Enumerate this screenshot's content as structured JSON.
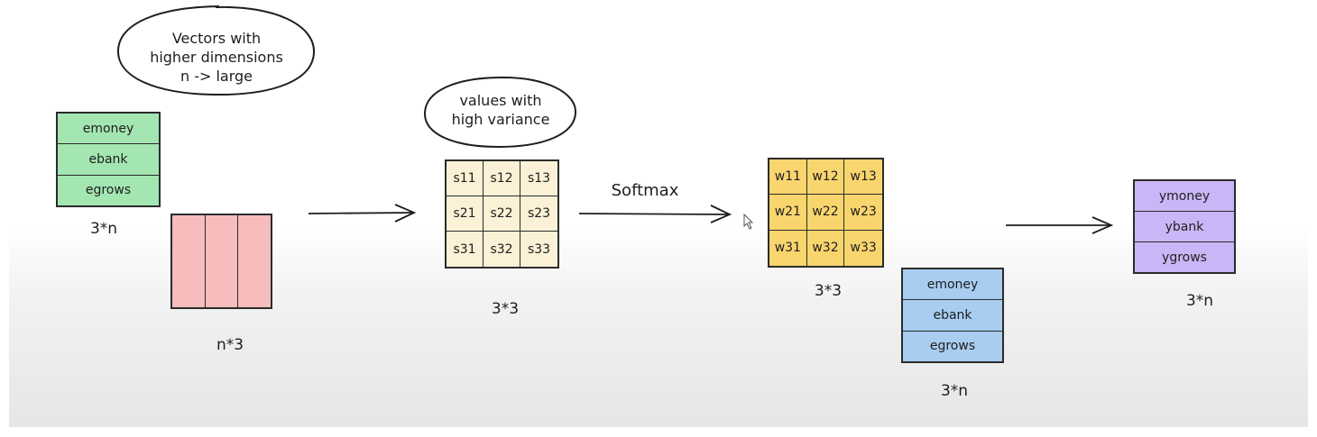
{
  "bubble1": {
    "lines": [
      "Vectors with",
      "higher dimensions",
      "n -> large"
    ]
  },
  "bubble2": {
    "lines": [
      "values with",
      "high variance"
    ]
  },
  "q_matrix": {
    "rows": [
      "emoney",
      "ebank",
      "egrows"
    ],
    "dims": "3*n",
    "color": "#a3e6b1"
  },
  "k_matrix": {
    "dims": "n*3",
    "color": "#f7bcbc"
  },
  "score_matrix": {
    "cells": [
      "s11",
      "s12",
      "s13",
      "s21",
      "s22",
      "s23",
      "s31",
      "s32",
      "s33"
    ],
    "dims": "3*3",
    "color": "#fbf1d6"
  },
  "softmax_label": "Softmax",
  "weight_matrix": {
    "cells": [
      "w11",
      "w12",
      "w13",
      "w21",
      "w22",
      "w23",
      "w31",
      "w32",
      "w33"
    ],
    "dims": "3*3",
    "color": "#f9d56e"
  },
  "v_matrix": {
    "rows": [
      "emoney",
      "ebank",
      "egrows"
    ],
    "dims": "3*n",
    "color": "#a8cdf0"
  },
  "output_matrix": {
    "rows": [
      "ymoney",
      "ybank",
      "ygrows"
    ],
    "dims": "3*n",
    "color": "#cab6f7"
  }
}
